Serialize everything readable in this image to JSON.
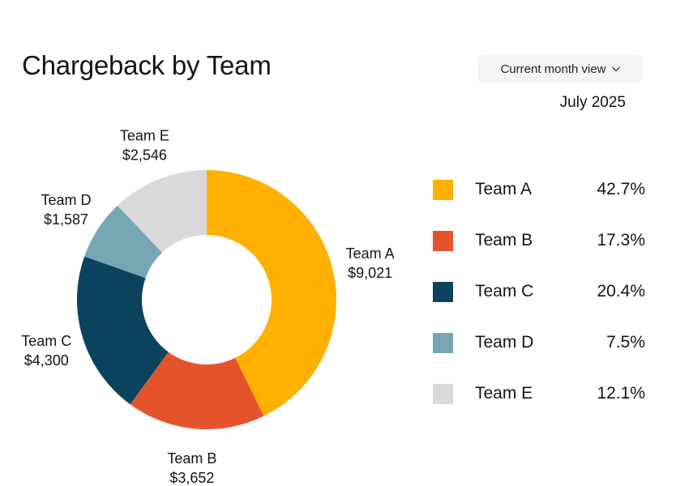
{
  "header": {
    "title": "Chargeback by Team",
    "view_button_label": "Current month view",
    "month": "July 2025"
  },
  "chart_data": {
    "type": "pie",
    "title": "Chargeback by Team",
    "subtitle": "July 2025",
    "categories": [
      "Team A",
      "Team B",
      "Team C",
      "Team D",
      "Team E"
    ],
    "values": [
      9021,
      3652,
      4300,
      1587,
      2546
    ],
    "value_labels": [
      "$9,021",
      "$3,652",
      "$4,300",
      "$1,587",
      "$2,546"
    ],
    "percentages": [
      "42.7%",
      "17.3%",
      "20.4%",
      "7.5%",
      "12.1%"
    ],
    "colors": [
      "#FFB000",
      "#E5532D",
      "#0B435E",
      "#77A6B4",
      "#D9D9DC"
    ],
    "donut": true,
    "legend_placement": "right"
  }
}
